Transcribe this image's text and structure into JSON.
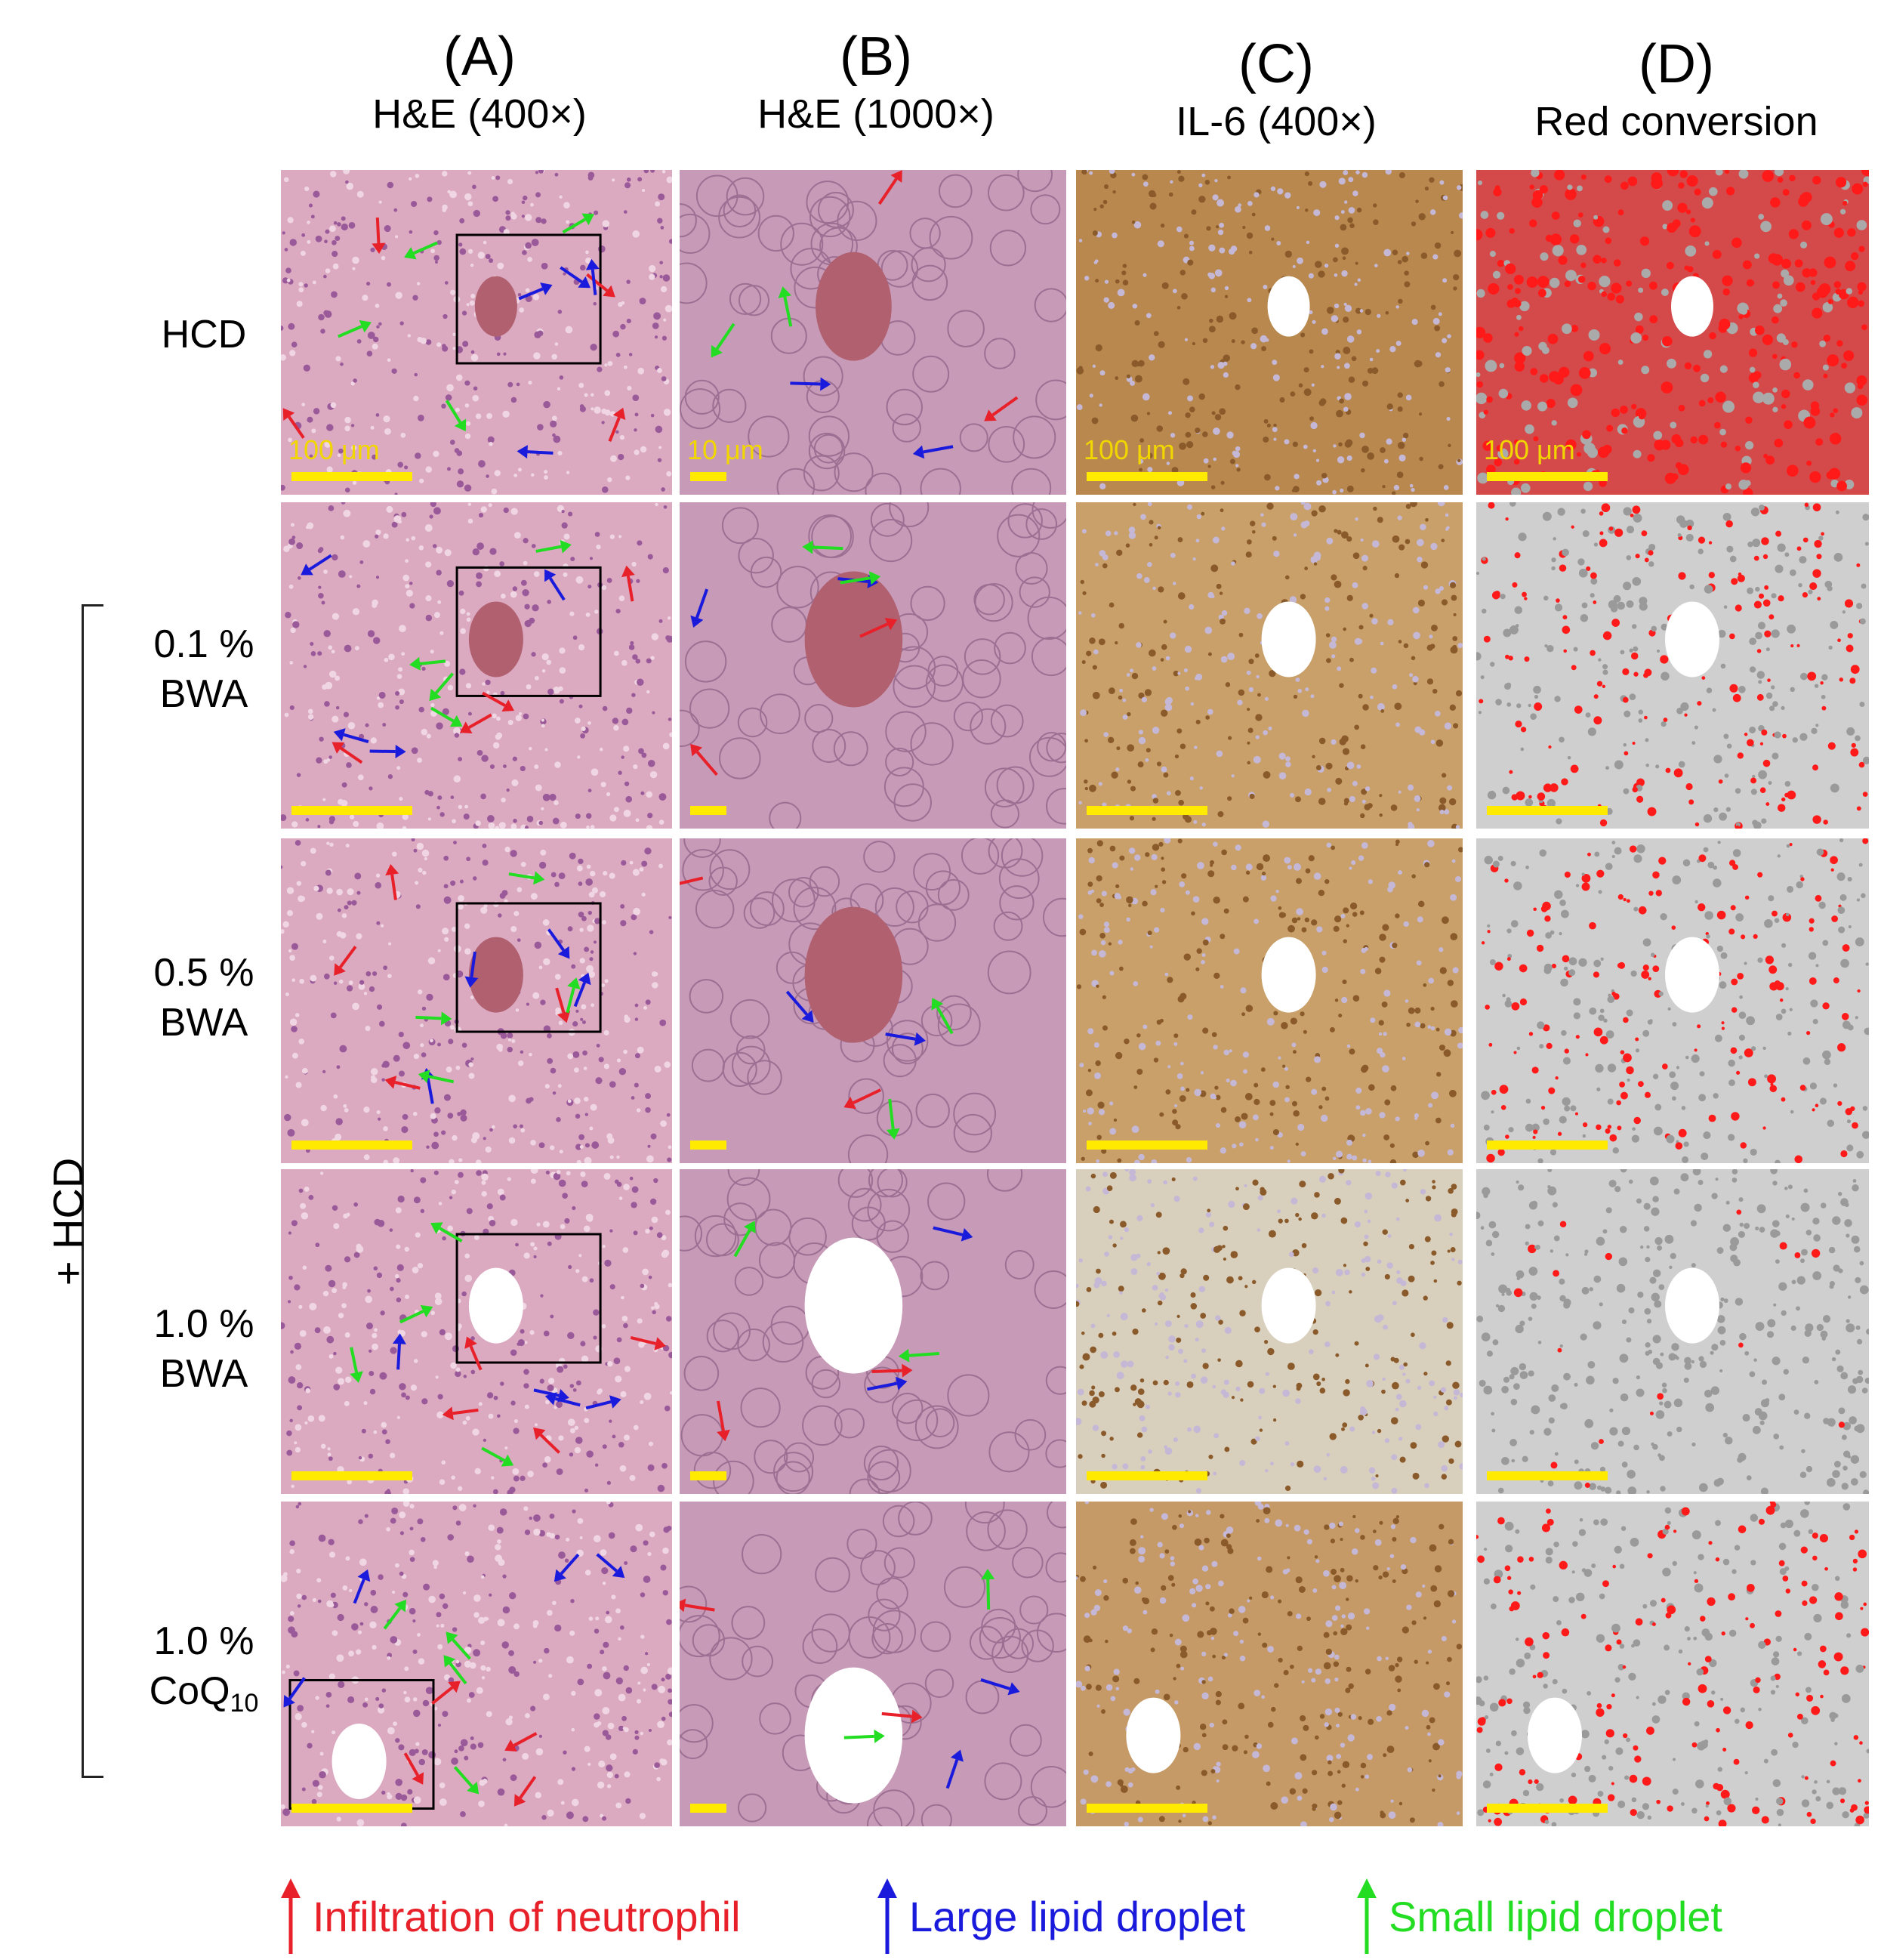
{
  "columns": [
    {
      "letter": "(A)",
      "subtitle": "H&E (400×)"
    },
    {
      "letter": "(B)",
      "subtitle": "H&E (1000×)"
    },
    {
      "letter": "(C)",
      "subtitle": "IL-6 (400×)"
    },
    {
      "letter": "(D)",
      "subtitle": "Red conversion"
    }
  ],
  "rows": [
    {
      "line1": "HCD",
      "line2": ""
    },
    {
      "line1": "0.1 %",
      "line2": "BWA"
    },
    {
      "line1": "0.5 %",
      "line2": "BWA"
    },
    {
      "line1": "1.0 %",
      "line2": "BWA"
    },
    {
      "line1": "1.0 %",
      "line2": "CoQ",
      "line2_sub": "10"
    }
  ],
  "group_label": "+ HCD",
  "scale_bars": {
    "a": "100 μm",
    "b": "10 μm",
    "c": "100 μm",
    "d": "100 μm"
  },
  "legend": [
    {
      "label": "Infiltration of neutrophil",
      "color": "#e8202a"
    },
    {
      "label": "Large lipid droplet",
      "color": "#1a1adc"
    },
    {
      "label": "Small lipid droplet",
      "color": "#22dd22"
    }
  ],
  "colors": {
    "he_tissue": "#dba9c0",
    "ihc_tissue": "#c9a06a",
    "red_conv_bg": "#cfcfcf",
    "red_mark": "#ff1a1a",
    "scale_bar": "#ffea00"
  }
}
